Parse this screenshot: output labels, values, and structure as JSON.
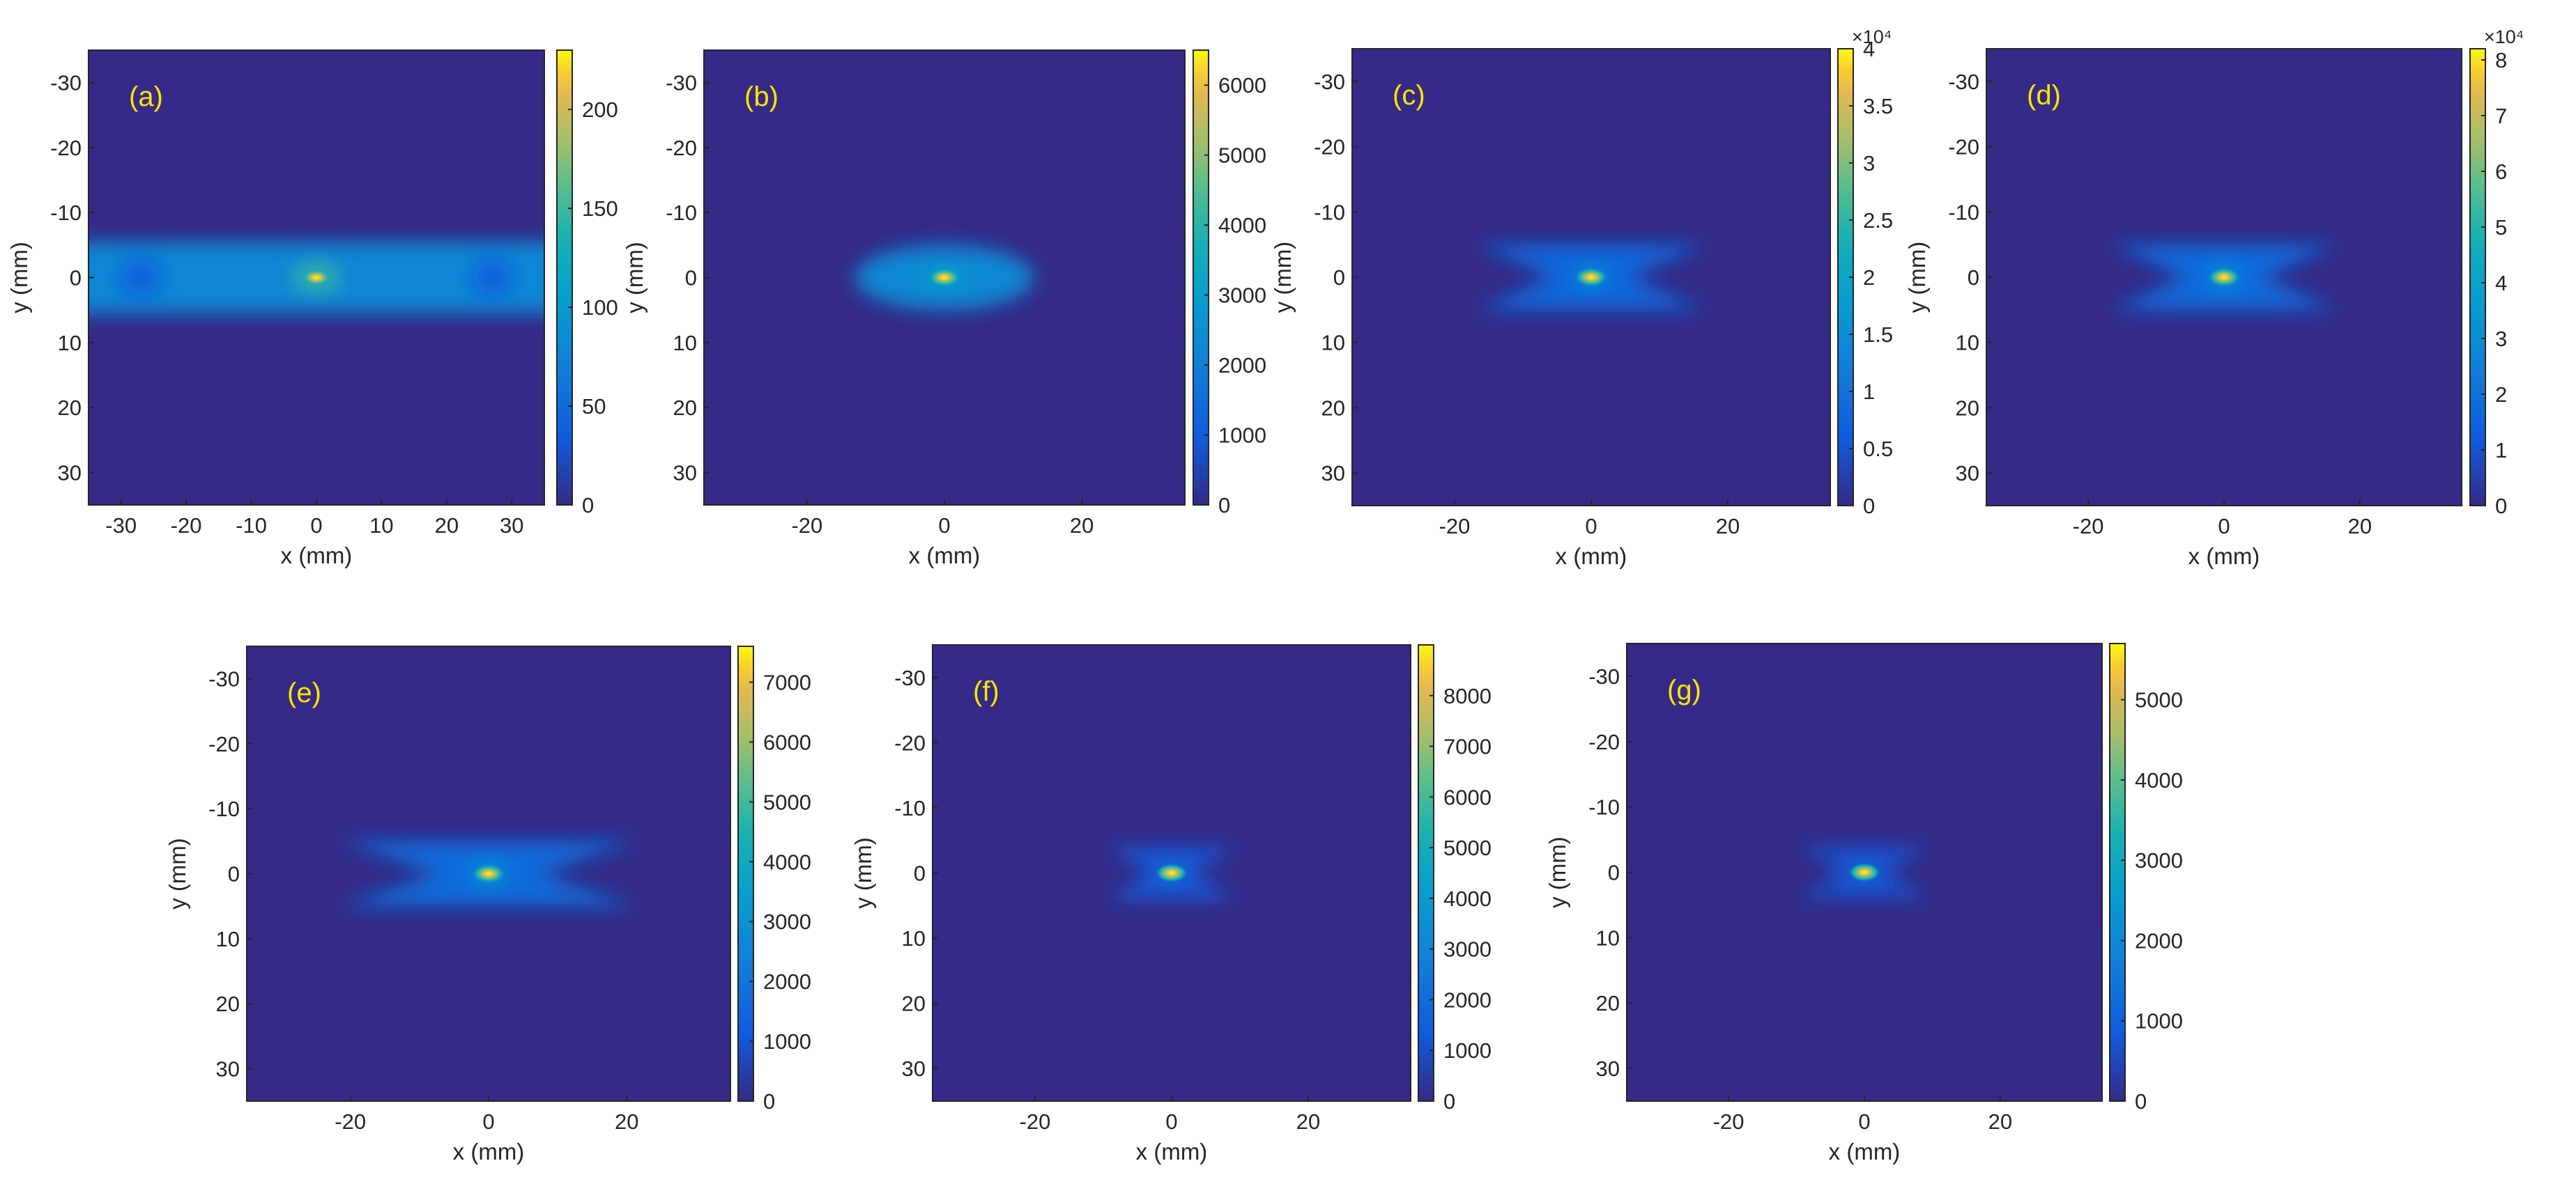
{
  "chart_data": [
    {
      "type": "heatmap",
      "panel_label": "(a)",
      "xlabel": "x (mm)",
      "ylabel": "y (mm)",
      "xlim": [
        -35,
        35
      ],
      "ylim": [
        -35,
        35
      ],
      "y_reversed": true,
      "x_ticks": [
        -30,
        -20,
        -10,
        0,
        10,
        20,
        30
      ],
      "y_ticks": [
        -30,
        -20,
        -10,
        0,
        10,
        20,
        30
      ],
      "colorbar": {
        "min": 0,
        "max": 230,
        "ticks": [
          0,
          50,
          100,
          150,
          200
        ],
        "tick_labels": [
          "0",
          "50",
          "100",
          "150",
          "200"
        ],
        "multiplier_label": ""
      },
      "peak": {
        "x": 0,
        "y": 0,
        "value": 230
      },
      "features": [
        {
          "shape": "band",
          "y_half_width": 5.5,
          "value": 80
        },
        {
          "shape": "spot",
          "x": 0,
          "y": 0,
          "sx": 3.5,
          "sy": 2.0,
          "value": 150
        },
        {
          "shape": "spot",
          "x": -27,
          "y": 0,
          "sx": 3.0,
          "sy": 3.0,
          "value": 40
        },
        {
          "shape": "spot",
          "x": 27,
          "y": 0,
          "sx": 3.0,
          "sy": 3.0,
          "value": 40
        }
      ]
    },
    {
      "type": "heatmap",
      "panel_label": "(b)",
      "xlabel": "x (mm)",
      "ylabel": "y (mm)",
      "xlim": [
        -35,
        35
      ],
      "ylim": [
        -35,
        35
      ],
      "y_reversed": true,
      "x_ticks": [
        -20,
        0,
        20
      ],
      "y_ticks": [
        -30,
        -20,
        -10,
        0,
        10,
        20,
        30
      ],
      "colorbar": {
        "min": 0,
        "max": 6500,
        "ticks": [
          0,
          1000,
          2000,
          3000,
          4000,
          5000,
          6000
        ],
        "tick_labels": [
          "0",
          "1000",
          "2000",
          "3000",
          "4000",
          "5000",
          "6000"
        ],
        "multiplier_label": ""
      },
      "peak": {
        "x": 0,
        "y": 0,
        "value": 6500
      },
      "features": [
        {
          "shape": "spot",
          "x": 0,
          "y": 0,
          "sx": 13.0,
          "sy": 5.0,
          "value": 2300
        },
        {
          "shape": "spot",
          "x": 0,
          "y": 0,
          "sx": 2.2,
          "sy": 1.4,
          "value": 3500
        }
      ]
    },
    {
      "type": "heatmap",
      "panel_label": "(c)",
      "xlabel": "x (mm)",
      "ylabel": "y (mm)",
      "xlim": [
        -35,
        35
      ],
      "ylim": [
        -35,
        35
      ],
      "y_reversed": true,
      "x_ticks": [
        -20,
        0,
        20
      ],
      "y_ticks": [
        -30,
        -20,
        -10,
        0,
        10,
        20,
        30
      ],
      "colorbar": {
        "min": 0,
        "max": 4.0,
        "ticks": [
          0,
          0.5,
          1,
          1.5,
          2,
          2.5,
          3,
          3.5,
          4
        ],
        "tick_labels": [
          "0",
          "0.5",
          "1",
          "1.5",
          "2",
          "2.5",
          "3",
          "3.5",
          "4"
        ],
        "multiplier_label": "×10⁴"
      },
      "peak": {
        "x": 0,
        "y": 0,
        "value": 4.0
      },
      "features": [
        {
          "shape": "bowtie",
          "x": 0,
          "y": 0,
          "sx": 7.0,
          "sy": 5.0,
          "value": 0.8
        },
        {
          "shape": "spot",
          "x": 0,
          "y": 0,
          "sx": 2.0,
          "sy": 1.5,
          "value": 1.8
        }
      ]
    },
    {
      "type": "heatmap",
      "panel_label": "(d)",
      "xlabel": "x (mm)",
      "ylabel": "y (mm)",
      "xlim": [
        -35,
        35
      ],
      "ylim": [
        -35,
        35
      ],
      "y_reversed": true,
      "x_ticks": [
        -20,
        0,
        20
      ],
      "y_ticks": [
        -30,
        -20,
        -10,
        0,
        10,
        20,
        30
      ],
      "colorbar": {
        "min": 0,
        "max": 8.2,
        "ticks": [
          0,
          1,
          2,
          3,
          4,
          5,
          6,
          7,
          8
        ],
        "tick_labels": [
          "0",
          "1",
          "2",
          "3",
          "4",
          "5",
          "6",
          "7",
          "8"
        ],
        "multiplier_label": "×10⁴"
      },
      "peak": {
        "x": 0,
        "y": 0,
        "value": 8.2
      },
      "features": [
        {
          "shape": "bowtie",
          "x": 0,
          "y": 0,
          "sx": 7.0,
          "sy": 5.0,
          "value": 1.8
        },
        {
          "shape": "spot",
          "x": 0,
          "y": 0,
          "sx": 2.2,
          "sy": 1.7,
          "value": 3.5
        }
      ]
    },
    {
      "type": "heatmap",
      "panel_label": "(e)",
      "xlabel": "x (mm)",
      "ylabel": "y (mm)",
      "xlim": [
        -35,
        35
      ],
      "ylim": [
        -35,
        35
      ],
      "y_reversed": true,
      "x_ticks": [
        -20,
        0,
        20
      ],
      "y_ticks": [
        -30,
        -20,
        -10,
        0,
        10,
        20,
        30
      ],
      "colorbar": {
        "min": 0,
        "max": 7600,
        "ticks": [
          0,
          1000,
          2000,
          3000,
          4000,
          5000,
          6000,
          7000
        ],
        "tick_labels": [
          "0",
          "1000",
          "2000",
          "3000",
          "4000",
          "5000",
          "6000",
          "7000"
        ],
        "multiplier_label": ""
      },
      "peak": {
        "x": 0,
        "y": 0,
        "value": 7600
      },
      "features": [
        {
          "shape": "bowtie",
          "x": 0,
          "y": 0,
          "sx": 9.0,
          "sy": 5.0,
          "value": 1700
        },
        {
          "shape": "spot",
          "x": 0,
          "y": 0,
          "sx": 2.6,
          "sy": 1.7,
          "value": 3200
        }
      ]
    },
    {
      "type": "heatmap",
      "panel_label": "(f)",
      "xlabel": "x (mm)",
      "ylabel": "y (mm)",
      "xlim": [
        -35,
        35
      ],
      "ylim": [
        -35,
        35
      ],
      "y_reversed": true,
      "x_ticks": [
        -20,
        0,
        20
      ],
      "y_ticks": [
        -30,
        -20,
        -10,
        0,
        10,
        20,
        30
      ],
      "colorbar": {
        "min": 0,
        "max": 9000,
        "ticks": [
          0,
          1000,
          2000,
          3000,
          4000,
          5000,
          6000,
          7000,
          8000
        ],
        "tick_labels": [
          "0",
          "1000",
          "2000",
          "3000",
          "4000",
          "5000",
          "6000",
          "7000",
          "8000"
        ],
        "multiplier_label": ""
      },
      "peak": {
        "x": 0,
        "y": 0,
        "value": 9000
      },
      "features": [
        {
          "shape": "bowtie",
          "x": 0,
          "y": 0,
          "sx": 4.0,
          "sy": 4.0,
          "value": 1200
        },
        {
          "shape": "spot",
          "x": 0,
          "y": 0,
          "sx": 1.6,
          "sy": 1.1,
          "value": 3000
        }
      ]
    },
    {
      "type": "heatmap",
      "panel_label": "(g)",
      "xlabel": "x (mm)",
      "ylabel": "y (mm)",
      "xlim": [
        -35,
        35
      ],
      "ylim": [
        -35,
        35
      ],
      "y_reversed": true,
      "x_ticks": [
        -20,
        0,
        20
      ],
      "y_ticks": [
        -30,
        -20,
        -10,
        0,
        10,
        20,
        30
      ],
      "colorbar": {
        "min": 0,
        "max": 5700,
        "ticks": [
          0,
          1000,
          2000,
          3000,
          4000,
          5000
        ],
        "tick_labels": [
          "0",
          "1000",
          "2000",
          "3000",
          "4000",
          "5000"
        ],
        "multiplier_label": ""
      },
      "peak": {
        "x": 0,
        "y": 0,
        "value": 5700
      },
      "features": [
        {
          "shape": "bowtie",
          "x": 0,
          "y": 0,
          "sx": 4.0,
          "sy": 4.0,
          "value": 700
        },
        {
          "shape": "spot",
          "x": 0,
          "y": 0,
          "sx": 1.4,
          "sy": 1.1,
          "value": 1800
        }
      ]
    }
  ]
}
